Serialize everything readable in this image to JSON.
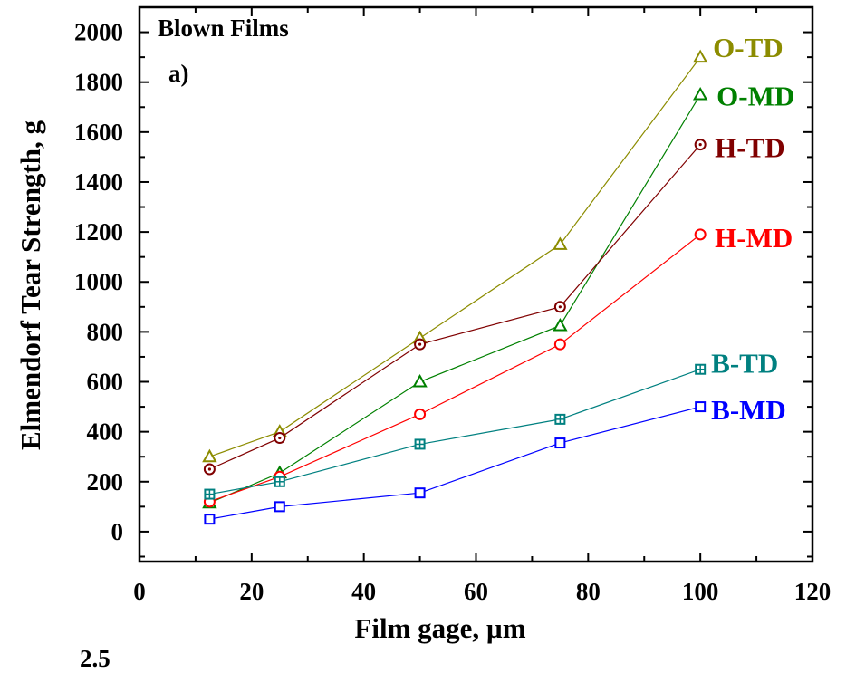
{
  "chart_data": {
    "type": "line",
    "title": "Blown Films",
    "panel_label": "a)",
    "xlabel": "Film gage, µm",
    "ylabel": "Elmendorf Tear Strength, g",
    "xlim": [
      0,
      120
    ],
    "ylim": [
      -120,
      2100
    ],
    "x_ticks": [
      0,
      20,
      40,
      60,
      80,
      100,
      120
    ],
    "y_ticks": [
      0,
      200,
      400,
      600,
      800,
      1000,
      1200,
      1400,
      1600,
      1800,
      2000
    ],
    "x": [
      12.5,
      25,
      50,
      75,
      100
    ],
    "grid": false,
    "legend": "inline labels at line ends",
    "series": [
      {
        "name": "O-TD",
        "color": "#8c8c00",
        "marker": "triangle",
        "values": [
          300,
          400,
          775,
          1150,
          1900
        ]
      },
      {
        "name": "O-MD",
        "color": "#008000",
        "marker": "triangle",
        "values": [
          115,
          235,
          600,
          825,
          1750
        ]
      },
      {
        "name": "H-TD",
        "color": "#800000",
        "marker": "circle-dot",
        "values": [
          250,
          375,
          750,
          900,
          1550
        ]
      },
      {
        "name": "H-MD",
        "color": "#ff0000",
        "marker": "circle",
        "values": [
          120,
          220,
          470,
          750,
          1190
        ]
      },
      {
        "name": "B-TD",
        "color": "#008080",
        "marker": "square-cross",
        "values": [
          150,
          200,
          350,
          450,
          650
        ]
      },
      {
        "name": "B-MD",
        "color": "#0000ff",
        "marker": "square",
        "values": [
          50,
          100,
          155,
          355,
          500
        ]
      }
    ]
  },
  "stray_text": "2.5"
}
